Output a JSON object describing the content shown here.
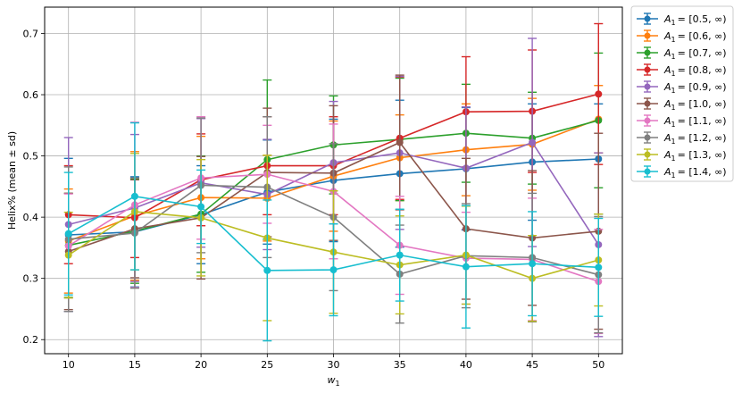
{
  "chart_data": {
    "type": "line",
    "title": "",
    "xlabel": "w",
    "xlabel_subscript": "1",
    "ylabel": "Helix% (mean ± sd)",
    "x": [
      10,
      15,
      20,
      25,
      30,
      35,
      40,
      45,
      50
    ],
    "xlim": [
      8.2,
      51.8
    ],
    "ylim": [
      0.177,
      0.743
    ],
    "xticks": [
      "10",
      "15",
      "20",
      "25",
      "30",
      "35",
      "40",
      "45",
      "50"
    ],
    "yticks": [
      "0.2",
      "0.3",
      "0.4",
      "0.5",
      "0.6",
      "0.7"
    ],
    "grid": true,
    "legend_position": "outside-top-right",
    "series": [
      {
        "name": "A",
        "name_subscript": "1",
        "name_suffix": "= [0.5, ∞)",
        "color": "#1f77b4",
        "values": [
          0.371,
          0.376,
          0.404,
          0.441,
          0.46,
          0.471,
          0.479,
          0.49,
          0.495
        ],
        "sd": [
          0.125,
          0.09,
          0.08,
          0.085,
          0.1,
          0.12,
          0.1,
          0.095,
          0.09
        ]
      },
      {
        "name": "A",
        "name_subscript": "1",
        "name_suffix": "= [0.6, ∞)",
        "color": "#ff7f0e",
        "values": [
          0.361,
          0.402,
          0.432,
          0.431,
          0.467,
          0.497,
          0.51,
          0.519,
          0.56
        ],
        "sd": [
          0.085,
          0.105,
          0.1,
          0.07,
          0.09,
          0.07,
          0.075,
          0.075,
          0.055
        ]
      },
      {
        "name": "A",
        "name_subscript": "1",
        "name_suffix": "= [0.7, ∞)",
        "color": "#2ca02c",
        "values": [
          0.354,
          0.377,
          0.405,
          0.494,
          0.518,
          0.527,
          0.537,
          0.529,
          0.558
        ],
        "sd": [
          0.085,
          0.085,
          0.095,
          0.13,
          0.08,
          0.1,
          0.08,
          0.075,
          0.11
        ]
      },
      {
        "name": "A",
        "name_subscript": "1",
        "name_suffix": "= [0.8, ∞)",
        "color": "#d62728",
        "values": [
          0.404,
          0.399,
          0.461,
          0.484,
          0.484,
          0.529,
          0.572,
          0.573,
          0.601
        ],
        "sd": [
          0.08,
          0.065,
          0.075,
          0.08,
          0.08,
          0.1,
          0.09,
          0.1,
          0.115
        ]
      },
      {
        "name": "A",
        "name_subscript": "1",
        "name_suffix": "= [0.9, ∞)",
        "color": "#9467bd",
        "values": [
          0.388,
          0.415,
          0.456,
          0.437,
          0.489,
          0.505,
          0.48,
          0.522,
          0.355
        ],
        "sd": [
          0.142,
          0.12,
          0.105,
          0.09,
          0.1,
          0.125,
          0.1,
          0.17,
          0.15
        ]
      },
      {
        "name": "A",
        "name_subscript": "1",
        "name_suffix": "= [1.0, ∞)",
        "color": "#8c564b",
        "values": [
          0.344,
          0.381,
          0.399,
          0.473,
          0.472,
          0.522,
          0.381,
          0.366,
          0.377
        ],
        "sd": [
          0.095,
          0.08,
          0.1,
          0.105,
          0.11,
          0.11,
          0.115,
          0.11,
          0.16
        ]
      },
      {
        "name": "A",
        "name_subscript": "1",
        "name_suffix": "= [1.1, ∞)",
        "color": "#e377c2",
        "values": [
          0.353,
          0.42,
          0.464,
          0.47,
          0.442,
          0.354,
          0.333,
          0.331,
          0.295
        ],
        "sd": [
          0.085,
          0.135,
          0.1,
          0.08,
          0.11,
          0.08,
          0.075,
          0.1,
          0.085
        ]
      },
      {
        "name": "A",
        "name_subscript": "1",
        "name_suffix": "= [1.2, ∞)",
        "color": "#7f7f7f",
        "values": [
          0.364,
          0.374,
          0.452,
          0.449,
          0.4,
          0.307,
          0.337,
          0.334,
          0.306
        ],
        "sd": [
          0.118,
          0.09,
          0.11,
          0.115,
          0.12,
          0.08,
          0.085,
          0.105,
          0.095
        ]
      },
      {
        "name": "A",
        "name_subscript": "1",
        "name_suffix": "= [1.3, ∞)",
        "color": "#bcbd22",
        "values": [
          0.338,
          0.409,
          0.399,
          0.366,
          0.343,
          0.322,
          0.338,
          0.3,
          0.33
        ],
        "sd": [
          0.07,
          0.095,
          0.095,
          0.135,
          0.1,
          0.08,
          0.08,
          0.07,
          0.075
        ]
      },
      {
        "name": "A",
        "name_subscript": "1",
        "name_suffix": "= [1.4, ∞)",
        "color": "#17becf",
        "values": [
          0.373,
          0.434,
          0.417,
          0.313,
          0.314,
          0.338,
          0.319,
          0.324,
          0.318
        ],
        "sd": [
          0.1,
          0.12,
          0.06,
          0.115,
          0.075,
          0.075,
          0.1,
          0.085,
          0.08
        ]
      }
    ]
  }
}
